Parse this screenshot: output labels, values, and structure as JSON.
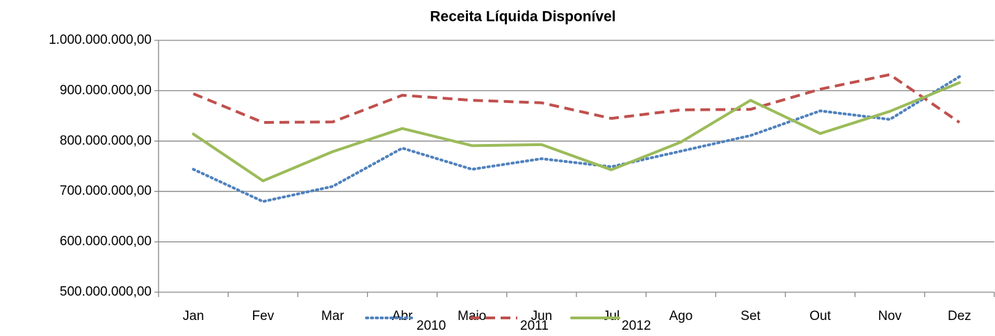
{
  "chart_data": {
    "type": "line",
    "title": "Receita Líquida Disponível",
    "categories": [
      "Jan",
      "Fev",
      "Mar",
      "Abr",
      "Maio",
      "Jun",
      "Jul",
      "Ago",
      "Set",
      "Out",
      "Nov",
      "Dez"
    ],
    "series": [
      {
        "name": "2010",
        "color": "#4f81bd",
        "dash": "dotted",
        "values": [
          744000000,
          680000000,
          710000000,
          786000000,
          744000000,
          765000000,
          749000000,
          780000000,
          811000000,
          860000000,
          843000000,
          928000000
        ]
      },
      {
        "name": "2011",
        "color": "#c0504d",
        "dash": "dashed",
        "values": [
          894000000,
          837000000,
          838000000,
          891000000,
          881000000,
          876000000,
          845000000,
          862000000,
          863000000,
          903000000,
          932000000,
          837000000
        ]
      },
      {
        "name": "2012",
        "color": "#9bbb59",
        "dash": "solid",
        "values": [
          814000000,
          721000000,
          779000000,
          825000000,
          791000000,
          793000000,
          743000000,
          798000000,
          881000000,
          815000000,
          859000000,
          916000000
        ]
      }
    ],
    "ylim": [
      500000000,
      1000000000
    ],
    "yticks": [
      {
        "value": 500000000,
        "label": "500.000.000,00"
      },
      {
        "value": 600000000,
        "label": "600.000.000,00"
      },
      {
        "value": 700000000,
        "label": "700.000.000,00"
      },
      {
        "value": 800000000,
        "label": "800.000.000,00"
      },
      {
        "value": 900000000,
        "label": "900.000.000,00"
      },
      {
        "value": 1000000000,
        "label": "1.000.000.000,00"
      }
    ],
    "grid": true,
    "legend": "bottom"
  }
}
